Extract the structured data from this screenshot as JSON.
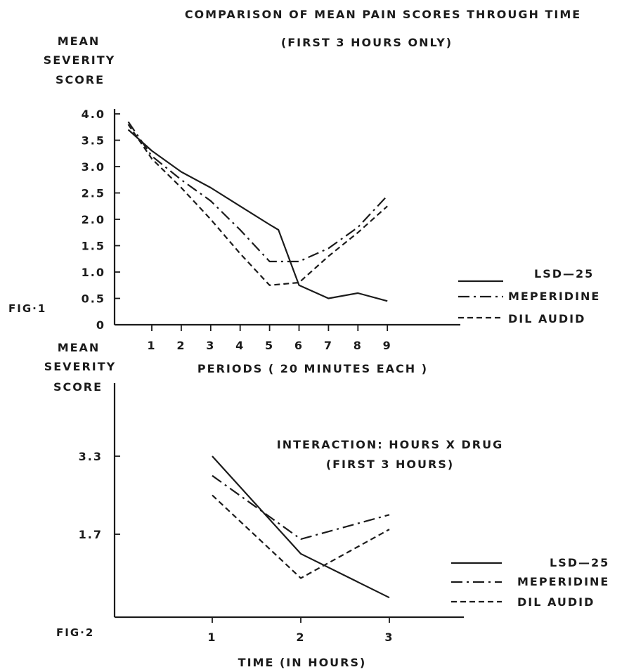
{
  "chart_data": [
    {
      "type": "line",
      "label": "FIG·1",
      "title": "COMPARISON OF MEAN PAIN SCORES THROUGH TIME",
      "subtitle": "(FIRST 3 HOURS ONLY)",
      "ylabel": [
        "MEAN",
        "SEVERITY",
        "SCORE"
      ],
      "xlabel": "PERIODS ( 20 MINUTES EACH )",
      "ylim": [
        0,
        4.0
      ],
      "xlim": [
        0.2,
        9
      ],
      "y_ticks": [
        "0",
        "0.5",
        "1.0",
        "1.5",
        "2.0",
        "2.5",
        "3.0",
        "3.5",
        "4.0"
      ],
      "x_ticks": [
        "1",
        "2",
        "3",
        "4",
        "5",
        "6",
        "7",
        "8",
        "9"
      ],
      "grid": false,
      "legend": "right",
      "series": [
        {
          "name": "LSD—25",
          "style": "solid",
          "x": [
            0.2,
            1,
            2,
            3,
            4,
            5,
            5.3,
            6,
            7,
            8,
            9
          ],
          "y": [
            3.7,
            3.3,
            2.9,
            2.6,
            2.25,
            1.9,
            1.8,
            0.75,
            0.5,
            0.6,
            0.45
          ]
        },
        {
          "name": "MEPERIDINE",
          "style": "dashdot",
          "x": [
            0.2,
            1,
            2,
            3,
            4,
            5,
            6,
            7,
            8,
            9
          ],
          "y": [
            3.85,
            3.2,
            2.75,
            2.35,
            1.8,
            1.2,
            1.2,
            1.45,
            1.85,
            2.45
          ]
        },
        {
          "name": "DIL AUDID",
          "style": "dashed",
          "x": [
            0.2,
            1,
            2,
            3,
            4,
            5,
            6,
            7,
            8,
            9
          ],
          "y": [
            3.8,
            3.15,
            2.6,
            2.0,
            1.35,
            0.75,
            0.8,
            1.3,
            1.75,
            2.25
          ]
        }
      ]
    },
    {
      "type": "line",
      "label": "FIG·2",
      "title": "INTERACTION: HOURS X DRUG",
      "subtitle": "(FIRST 3 HOURS)",
      "ylabel": [
        "MEAN",
        "SEVERITY",
        "SCORE"
      ],
      "xlabel": "TIME (IN HOURS)",
      "ylim": [
        0,
        4.7
      ],
      "xlim": [
        0,
        4
      ],
      "y_ticks": [
        "1.7",
        "3.3"
      ],
      "y_tick_values": [
        1.7,
        3.3
      ],
      "x_ticks": [
        "1",
        "2",
        "3"
      ],
      "grid": false,
      "legend": "right",
      "series": [
        {
          "name": "LSD—25",
          "style": "solid",
          "x": [
            1,
            2,
            3
          ],
          "y": [
            3.3,
            1.3,
            0.4
          ]
        },
        {
          "name": "MEPERIDINE",
          "style": "dashdot",
          "x": [
            1,
            2,
            3
          ],
          "y": [
            2.9,
            1.6,
            2.1
          ]
        },
        {
          "name": "DIL AUDID",
          "style": "dashed",
          "x": [
            1,
            2,
            3
          ],
          "y": [
            2.5,
            0.8,
            1.8
          ]
        }
      ]
    }
  ]
}
